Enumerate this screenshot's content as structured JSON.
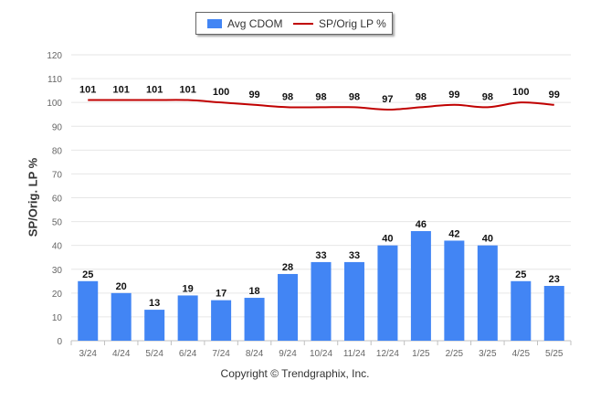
{
  "chart_data": {
    "type": "bar",
    "categories": [
      "3/24",
      "4/24",
      "5/24",
      "6/24",
      "7/24",
      "8/24",
      "9/24",
      "10/24",
      "11/24",
      "12/24",
      "1/25",
      "2/25",
      "3/25",
      "4/25",
      "5/25"
    ],
    "series": [
      {
        "name": "Avg CDOM",
        "type": "bar",
        "color": "#4285f4",
        "values": [
          25,
          20,
          13,
          19,
          17,
          18,
          28,
          33,
          33,
          40,
          46,
          42,
          40,
          25,
          23
        ]
      },
      {
        "name": "SP/Orig LP %",
        "type": "line",
        "color": "#c00000",
        "values": [
          101,
          101,
          101,
          101,
          100,
          99,
          98,
          98,
          98,
          97,
          98,
          99,
          98,
          100,
          99
        ]
      }
    ],
    "ylabel": "SP/Orig. LP %",
    "ylim": [
      0,
      120
    ],
    "yticks": [
      0,
      10,
      20,
      30,
      40,
      50,
      60,
      70,
      80,
      90,
      100,
      110,
      120
    ],
    "grid": true,
    "legend": "top-center",
    "data_labels": true
  },
  "legend": {
    "bar_label": "Avg CDOM",
    "line_label": "SP/Orig LP %"
  },
  "credit": "Copyright © Trendgraphix, Inc."
}
